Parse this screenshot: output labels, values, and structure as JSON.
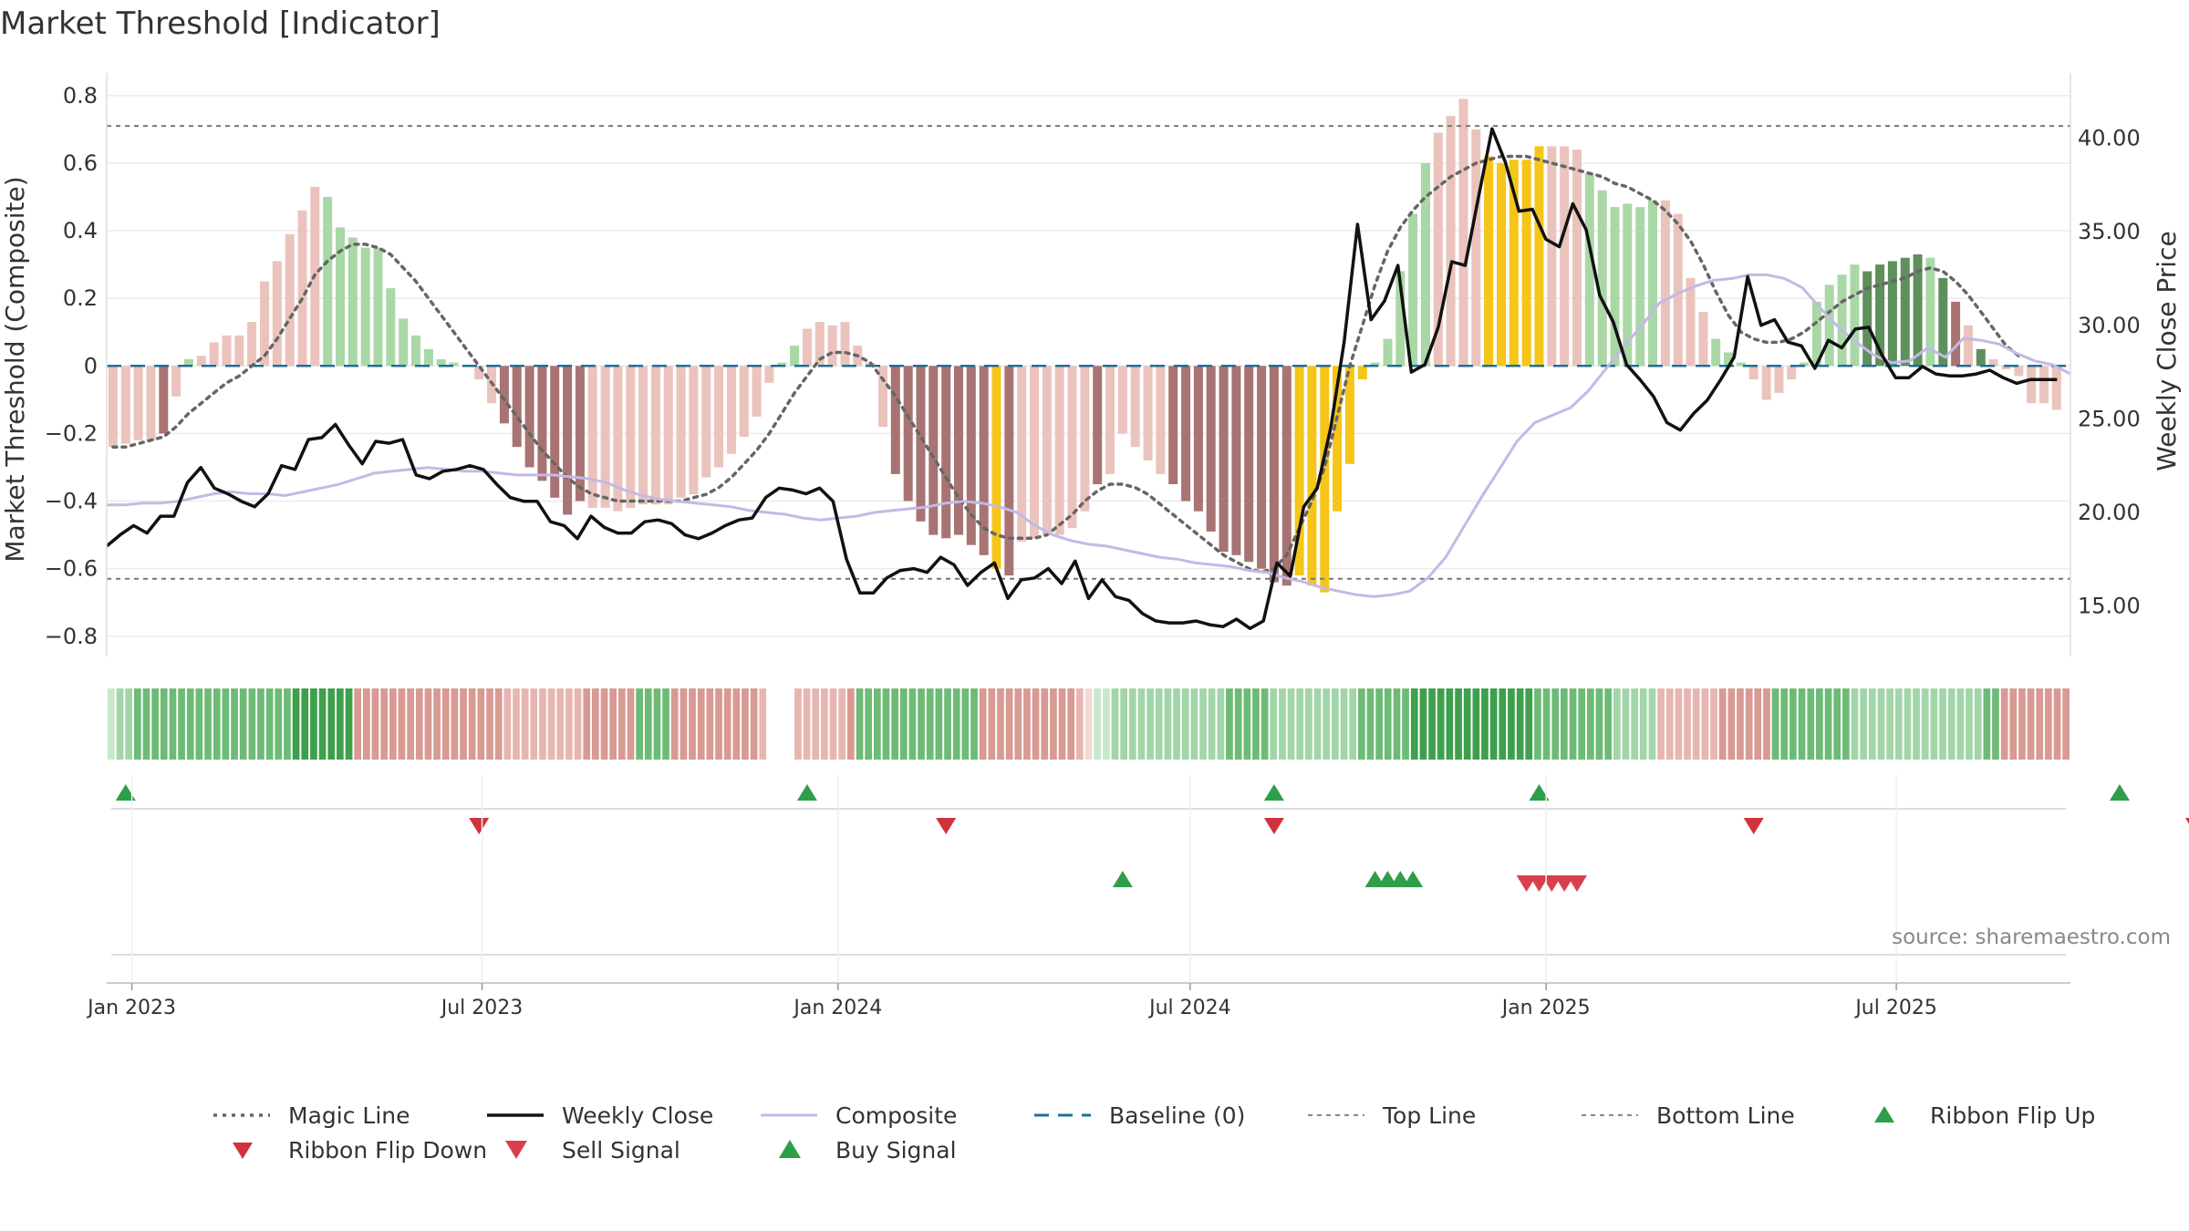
{
  "title": "Market Threshold [Indicator]",
  "source": "source: sharemaestro.com",
  "colors": {
    "strong_bull": "#5f8f5b",
    "weak_bull": "#a9d8a6",
    "strong_bear": "#a87373",
    "weak_bear": "#ebc3bd",
    "extreme": "#f5c518",
    "magic": "#666666",
    "close": "#111111",
    "composite": "#c3b9e6",
    "baseline": "#1f6f99",
    "buy": "#2e9e4a",
    "sell": "#d9404b"
  },
  "chart_data": {
    "type": "bar",
    "title": "Market Threshold [Indicator]",
    "ylabel": "Market Threshold (Composite)",
    "y2label": "Weekly Close Price",
    "ylim": [
      -0.86,
      0.84
    ],
    "y2lim": [
      12.3,
      43.0
    ],
    "yticks": [
      "0.8",
      "0.6",
      "0.4",
      "0.2",
      "0",
      "−0.2",
      "−0.4",
      "−0.6",
      "−0.8"
    ],
    "y2ticks": [
      "40.00",
      "35.00",
      "30.00",
      "25.00",
      "20.00",
      "15.00"
    ],
    "xticks": [
      "Jan 2023",
      "Jul 2023",
      "Jan 2024",
      "Jul 2024",
      "Jan 2025",
      "Jul 2025"
    ],
    "x_start": "2022-12-19",
    "x_end": "2025-09-29",
    "top_line": 0.71,
    "bottom_line": -0.63,
    "composite_bars": [
      -0.24,
      -0.23,
      -0.22,
      -0.22,
      -0.2,
      -0.09,
      0.02,
      0.03,
      0.07,
      0.09,
      0.09,
      0.13,
      0.25,
      0.31,
      0.39,
      0.46,
      0.53,
      0.5,
      0.41,
      0.38,
      0.35,
      0.35,
      0.23,
      0.14,
      0.09,
      0.05,
      0.02,
      0.01,
      0,
      -0.04,
      -0.11,
      -0.17,
      -0.24,
      -0.3,
      -0.34,
      -0.39,
      -0.44,
      -0.4,
      -0.42,
      -0.42,
      -0.43,
      -0.42,
      -0.41,
      -0.41,
      -0.41,
      -0.39,
      -0.38,
      -0.33,
      -0.3,
      -0.26,
      -0.21,
      -0.15,
      -0.05,
      0.01,
      0.06,
      0.11,
      0.13,
      0.12,
      0.13,
      0.06,
      0.01,
      -0.18,
      -0.32,
      -0.4,
      -0.46,
      -0.5,
      -0.51,
      -0.5,
      -0.53,
      -0.56,
      -0.6,
      -0.62,
      -0.52,
      -0.51,
      -0.5,
      -0.5,
      -0.48,
      -0.43,
      -0.35,
      -0.32,
      -0.2,
      -0.24,
      -0.28,
      -0.32,
      -0.35,
      -0.4,
      -0.43,
      -0.49,
      -0.55,
      -0.56,
      -0.58,
      -0.6,
      -0.64,
      -0.65,
      -0.62,
      -0.65,
      -0.67,
      -0.43,
      -0.29,
      -0.04,
      0.01,
      0.08,
      0.28,
      0.45,
      0.6,
      0.69,
      0.74,
      0.79,
      0.7,
      0.62,
      0.6,
      0.61,
      0.61,
      0.65,
      0.65,
      0.65,
      0.64,
      0.57,
      0.52,
      0.47,
      0.48,
      0.47,
      0.49,
      0.49,
      0.45,
      0.26,
      0.16,
      0.08,
      0.04,
      0.01,
      -0.04,
      -0.1,
      -0.08,
      -0.04,
      0.01,
      0.19,
      0.24,
      0.27,
      0.3,
      0.28,
      0.3,
      0.31,
      0.32,
      0.33,
      0.32,
      0.26,
      0.19,
      0.12,
      0.05,
      0.02,
      -0.01,
      -0.03,
      -0.11,
      -0.11,
      -0.13
    ],
    "bar_states": "BCCCACCBBBBBBBBBBCCCCCCCCCCCCCCAAAAAAACCCCCCCCCCCCCCCCCBBBBBBCAAAAAAAAEACCCCCCACCCCCAAAAAAAAAAEEEEEECCCCCBBBBEEEEEBBBCCCCCCBBBBCCCCCCCCCCCCDDDDDCDABDBBBBBBBBBBCCCCCCCAAA",
    "magic_line": [
      -0.24,
      -0.24,
      -0.23,
      -0.22,
      -0.21,
      -0.18,
      -0.14,
      -0.11,
      -0.08,
      -0.05,
      -0.03,
      0.0,
      0.03,
      0.08,
      0.14,
      0.2,
      0.27,
      0.31,
      0.34,
      0.36,
      0.36,
      0.35,
      0.33,
      0.29,
      0.25,
      0.2,
      0.15,
      0.1,
      0.05,
      0.0,
      -0.05,
      -0.1,
      -0.15,
      -0.2,
      -0.25,
      -0.29,
      -0.33,
      -0.36,
      -0.38,
      -0.39,
      -0.4,
      -0.4,
      -0.4,
      -0.4,
      -0.4,
      -0.4,
      -0.39,
      -0.38,
      -0.36,
      -0.33,
      -0.29,
      -0.25,
      -0.2,
      -0.14,
      -0.08,
      -0.03,
      0.02,
      0.04,
      0.04,
      0.03,
      0.01,
      -0.04,
      -0.09,
      -0.15,
      -0.21,
      -0.27,
      -0.33,
      -0.39,
      -0.44,
      -0.48,
      -0.5,
      -0.51,
      -0.51,
      -0.51,
      -0.5,
      -0.47,
      -0.44,
      -0.4,
      -0.37,
      -0.35,
      -0.35,
      -0.36,
      -0.38,
      -0.41,
      -0.44,
      -0.47,
      -0.5,
      -0.53,
      -0.56,
      -0.58,
      -0.6,
      -0.61,
      -0.6,
      -0.56,
      -0.48,
      -0.4,
      -0.3,
      -0.15,
      0.0,
      0.12,
      0.24,
      0.34,
      0.41,
      0.46,
      0.5,
      0.53,
      0.56,
      0.58,
      0.6,
      0.61,
      0.62,
      0.62,
      0.62,
      0.61,
      0.6,
      0.59,
      0.58,
      0.57,
      0.56,
      0.54,
      0.53,
      0.51,
      0.49,
      0.46,
      0.42,
      0.37,
      0.3,
      0.22,
      0.15,
      0.1,
      0.08,
      0.07,
      0.07,
      0.08,
      0.1,
      0.13,
      0.16,
      0.19,
      0.21,
      0.23,
      0.24,
      0.25,
      0.26,
      0.28,
      0.29,
      0.28,
      0.25,
      0.21,
      0.16,
      0.11,
      0.06,
      0.03
    ],
    "composite_line": [
      20.4,
      20.4,
      20.5,
      20.5,
      20.6,
      20.8,
      21.0,
      21.1,
      21.0,
      21.0,
      20.9,
      21.1,
      21.3,
      21.5,
      21.8,
      22.1,
      22.2,
      22.3,
      22.4,
      22.3,
      22.2,
      22.2,
      22.1,
      22.0,
      22.0,
      22.0,
      21.9,
      21.8,
      21.6,
      21.2,
      20.9,
      20.7,
      20.6,
      20.5,
      20.4,
      20.3,
      20.1,
      20.0,
      19.9,
      19.7,
      19.6,
      19.7,
      19.8,
      20.0,
      20.1,
      20.2,
      20.3,
      20.5,
      20.6,
      20.5,
      20.3,
      20.0,
      19.3,
      18.8,
      18.5,
      18.3,
      18.2,
      18.0,
      17.8,
      17.6,
      17.5,
      17.3,
      17.2,
      17.1,
      16.9,
      16.8,
      16.5,
      16.3,
      16.0,
      15.8,
      15.6,
      15.5,
      15.6,
      15.8,
      16.5,
      17.6,
      19.2,
      20.8,
      22.3,
      23.8,
      24.8,
      25.2,
      25.6,
      26.5,
      27.7,
      28.9,
      30.0,
      31.2,
      31.7,
      32.1,
      32.4,
      32.5,
      32.7,
      32.7,
      32.5,
      32.0,
      30.9,
      29.9,
      29.1,
      28.4,
      28.0,
      28.1,
      28.8,
      28.3,
      29.3,
      29.2,
      29.0,
      28.5,
      28.1,
      27.9,
      27.4
    ]
  },
  "legend": [
    {
      "key": "magic",
      "label": "Magic Line"
    },
    {
      "key": "close",
      "label": "Weekly Close"
    },
    {
      "key": "composite",
      "label": "Composite"
    },
    {
      "key": "baseline",
      "label": "Baseline (0)"
    },
    {
      "key": "top",
      "label": "Top Line"
    },
    {
      "key": "bottom",
      "label": "Bottom Line"
    },
    {
      "key": "flip_up",
      "label": "Ribbon Flip Up"
    },
    {
      "key": "flip_down",
      "label": "Ribbon Flip Down"
    },
    {
      "key": "sell",
      "label": "Sell Signal"
    },
    {
      "key": "buy",
      "label": "Buy Signal"
    }
  ],
  "ribbon": "",
  "ribbon_levels": "0112222222222222222223333333333332222222222221111111112222222222222222222211111111112222222222222222222222222210001111111111111222221111111111222222333333333333332222222221111111111112222222222222221111111111111112222222222",
  "ribbon_gap_index": 61,
  "ribbon_flip_up_weeks": [
    1,
    55,
    92,
    113,
    159
  ],
  "ribbon_flip_down_weeks": [
    29,
    66,
    92,
    130,
    165
  ],
  "buy_signal_weeks": [
    80,
    100,
    101,
    102,
    103
  ],
  "sell_signal_weeks": [
    112,
    113,
    114,
    115,
    116
  ]
}
